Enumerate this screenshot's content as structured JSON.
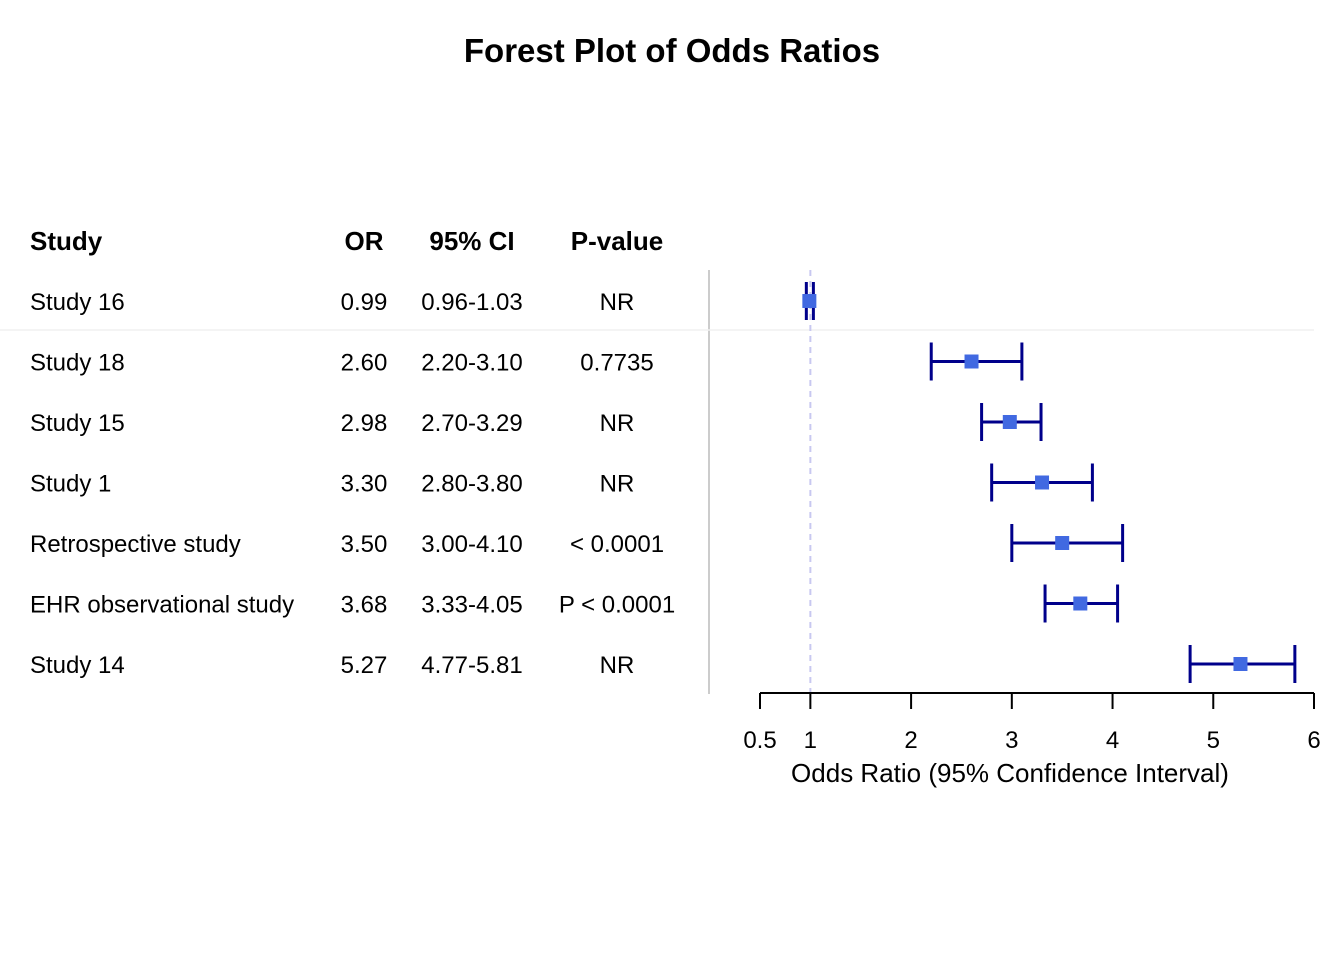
{
  "chart_data": {
    "type": "forest",
    "title": "Forest Plot of Odds Ratios",
    "xlabel": "Odds Ratio (95% Confidence Interval)",
    "columns": [
      "Study",
      "OR",
      "95% CI",
      "P-value"
    ],
    "rows": [
      {
        "study": "Study 16",
        "or_label": "0.99",
        "ci_label": "0.96-1.03",
        "p": "NR",
        "or": 0.99,
        "lo": 0.96,
        "hi": 1.03
      },
      {
        "study": "Study 18",
        "or_label": "2.60",
        "ci_label": "2.20-3.10",
        "p": "0.7735",
        "or": 2.6,
        "lo": 2.2,
        "hi": 3.1
      },
      {
        "study": "Study 15",
        "or_label": "2.98",
        "ci_label": "2.70-3.29",
        "p": "NR",
        "or": 2.98,
        "lo": 2.7,
        "hi": 3.29
      },
      {
        "study": "Study 1",
        "or_label": "3.30",
        "ci_label": "2.80-3.80",
        "p": "NR",
        "or": 3.3,
        "lo": 2.8,
        "hi": 3.8
      },
      {
        "study": "Retrospective study",
        "or_label": "3.50",
        "ci_label": "3.00-4.10",
        "p": "< 0.0001",
        "or": 3.5,
        "lo": 3.0,
        "hi": 4.1
      },
      {
        "study": "EHR observational study",
        "or_label": "3.68",
        "ci_label": "3.33-4.05",
        "p": "P < 0.0001",
        "or": 3.68,
        "lo": 3.33,
        "hi": 4.05
      },
      {
        "study": "Study 14",
        "or_label": "5.27",
        "ci_label": "4.77-5.81",
        "p": "NR",
        "or": 5.27,
        "lo": 4.77,
        "hi": 5.81
      }
    ],
    "x_ticks": [
      0.5,
      1,
      2,
      3,
      4,
      5,
      6
    ],
    "x_tick_labels": [
      "0.5",
      "1",
      "2",
      "3",
      "4",
      "5",
      "6"
    ],
    "xlim": [
      0.5,
      6
    ],
    "reference_line": 1,
    "colors": {
      "point": "#4169e1",
      "ci": "#00008b",
      "reference": "#c8c8f0",
      "separator": "#cccccc"
    }
  }
}
